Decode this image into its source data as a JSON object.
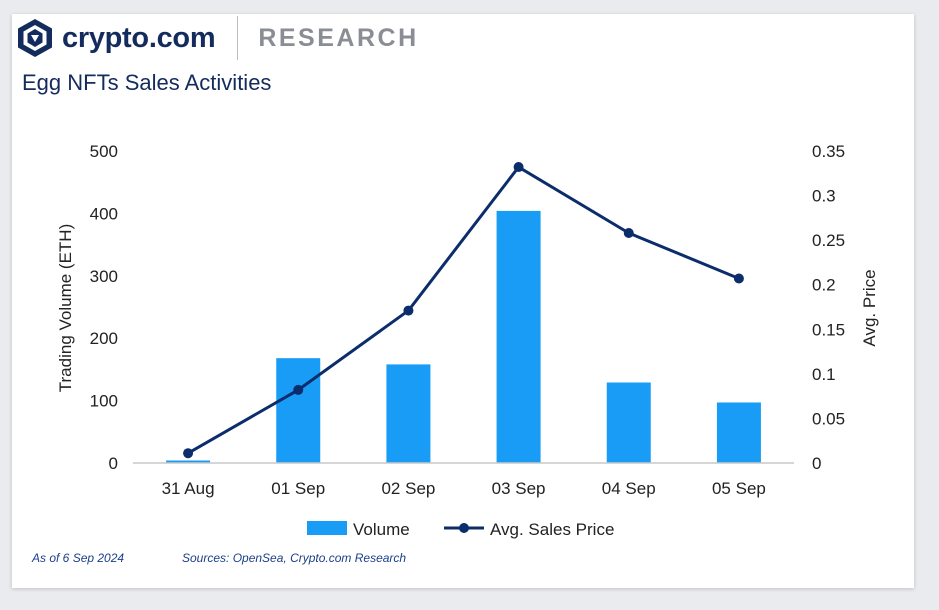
{
  "brand": {
    "name": "crypto.com",
    "division": "RESEARCH"
  },
  "colors": {
    "bar": "#199cf5",
    "line": "#0b2d6b",
    "brand": "#142b5e"
  },
  "footer": {
    "as_of": "As of 6 Sep 2024",
    "sources": "Sources: OpenSea, Crypto.com Research"
  },
  "chart_data": {
    "type": "bar",
    "title": "Egg NFTs Sales Activities",
    "categories": [
      "31 Aug",
      "01 Sep",
      "02 Sep",
      "03 Sep",
      "04 Sep",
      "05 Sep"
    ],
    "series": [
      {
        "name": "Volume",
        "type": "bar",
        "axis": "left",
        "values": [
          4,
          168,
          158,
          404,
          129,
          97
        ]
      },
      {
        "name": "Avg. Sales Price",
        "type": "line",
        "axis": "right",
        "values": [
          0.011,
          0.082,
          0.171,
          0.332,
          0.258,
          0.207
        ]
      }
    ],
    "ylabel": "Trading Volume (ETH)",
    "y2label": "Avg. Price",
    "ylim": [
      0,
      500
    ],
    "y2lim": [
      0,
      0.35
    ],
    "yticks": [
      "0",
      "100",
      "200",
      "300",
      "400",
      "500"
    ],
    "y2ticks": [
      "0",
      "0.05",
      "0.1",
      "0.15",
      "0.2",
      "0.25",
      "0.3",
      "0.35"
    ],
    "grid": false,
    "legend": "bottom"
  }
}
